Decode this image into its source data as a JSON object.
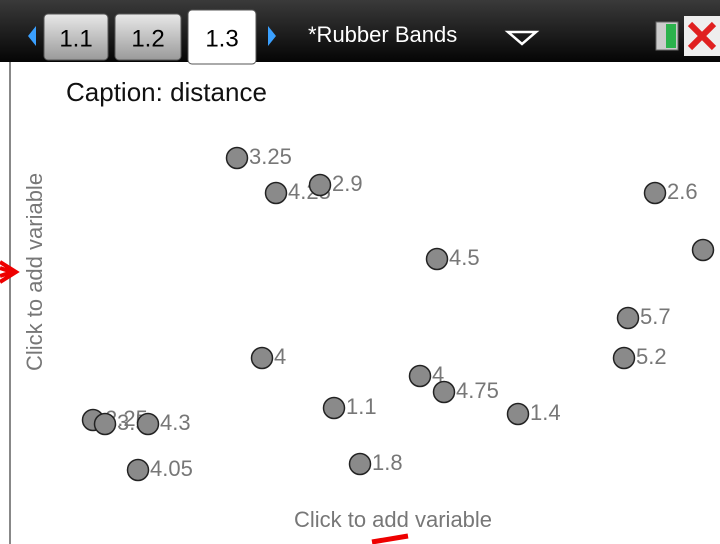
{
  "tabs": [
    "1.1",
    "1.2",
    "1.3"
  ],
  "document_title": "*Rubber Bands",
  "caption": "Caption: distance",
  "y_axis_prompt": "Click to add variable",
  "x_axis_prompt": "Click to add variable",
  "points": [
    {
      "label": "3.25"
    },
    {
      "label": "4.25"
    },
    {
      "label": "2.9"
    },
    {
      "label": "2.6"
    },
    {
      "label": null
    },
    {
      "label": "4.5"
    },
    {
      "label": "5.7"
    },
    {
      "label": "4"
    },
    {
      "label": "5.2"
    },
    {
      "label": "4"
    },
    {
      "label": "4.75"
    },
    {
      "label": "1.1"
    },
    {
      "label": "1.4"
    },
    {
      "label": "2.25"
    },
    {
      "label": "3.5"
    },
    {
      "label": "4.3"
    },
    {
      "label": "4.05"
    },
    {
      "label": "1.8"
    }
  ]
}
